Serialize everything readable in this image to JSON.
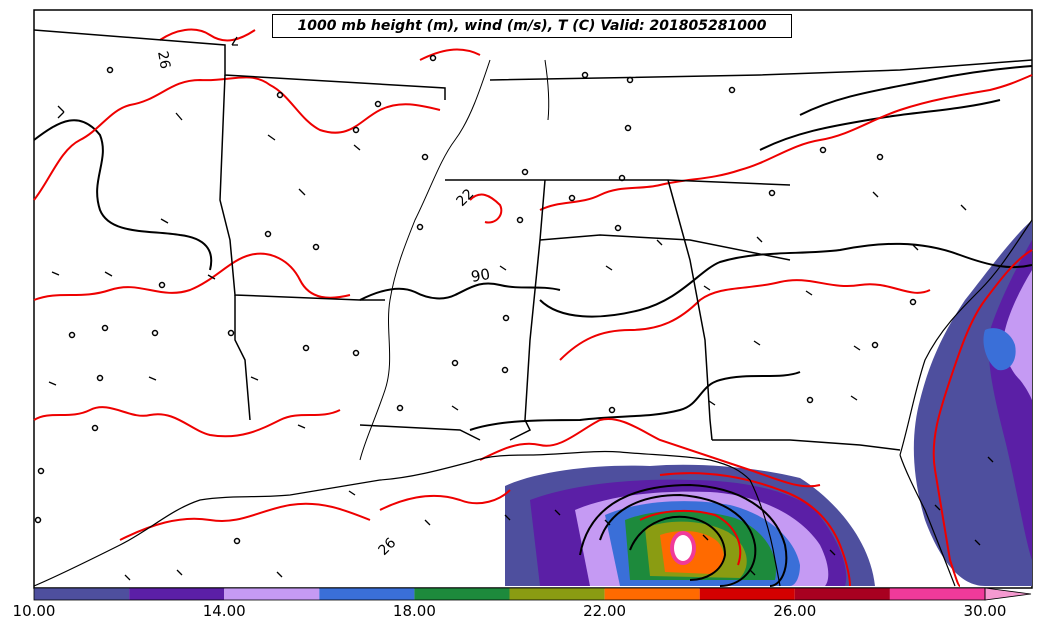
{
  "title": "1000 mb height (m), wind (m/s), T (C) Valid: 201805281000",
  "contour_labels": {
    "height": "90",
    "temp_a": "26",
    "temp_b": "22",
    "temp_c": "26"
  },
  "colorbar": {
    "ticks": [
      "10.00",
      "14.00",
      "18.00",
      "22.00",
      "26.00",
      "30.00"
    ],
    "bins": [
      {
        "from": 10,
        "to": 12,
        "color": "#4e4f9e"
      },
      {
        "from": 12,
        "to": 14,
        "color": "#5b1fa6"
      },
      {
        "from": 14,
        "to": 16,
        "color": "#c59af3"
      },
      {
        "from": 16,
        "to": 18,
        "color": "#3a6fd8"
      },
      {
        "from": 18,
        "to": 20,
        "color": "#1d8a3c"
      },
      {
        "from": 20,
        "to": 22,
        "color": "#8a9c12"
      },
      {
        "from": 22,
        "to": 24,
        "color": "#ff6a00"
      },
      {
        "from": 24,
        "to": 26,
        "color": "#d40000"
      },
      {
        "from": 26,
        "to": 28,
        "color": "#a80020"
      },
      {
        "from": 28,
        "to": 30,
        "color": "#f03a9a"
      }
    ],
    "extend_color": "#f59ad0"
  },
  "colors": {
    "temperature_contour": "#ee0000",
    "height_contour": "#000000",
    "boundaries": "#000000"
  }
}
